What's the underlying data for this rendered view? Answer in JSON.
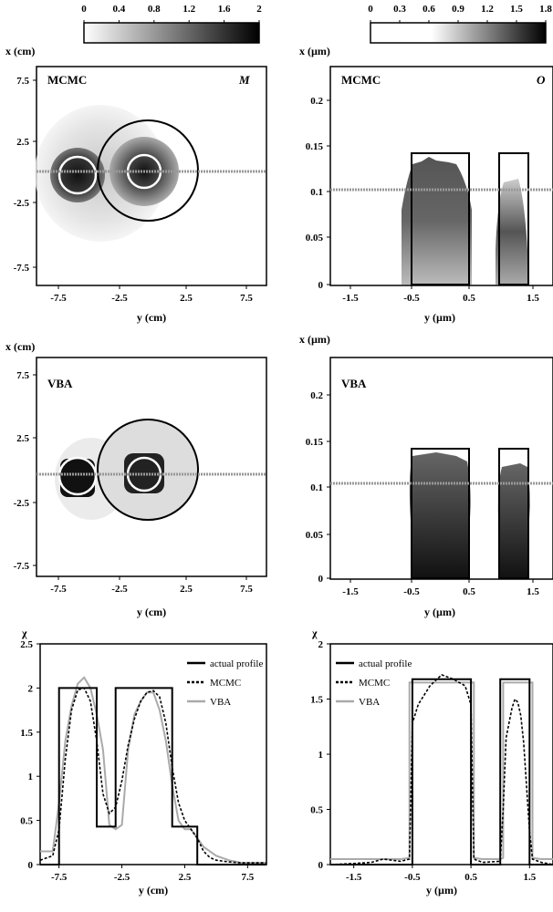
{
  "colorbars": [
    {
      "ticks": [
        "0",
        "0.4",
        "0.8",
        "1.2",
        "1.6",
        "2"
      ]
    },
    {
      "ticks": [
        "0",
        "0.3",
        "0.6",
        "0.9",
        "1.2",
        "1.5",
        "1.8"
      ]
    }
  ],
  "panels": [
    {
      "id": "mcmc-xy",
      "method": "MCMC",
      "corner": "M",
      "xlabel": "y (cm)",
      "ylabel": "x (cm)",
      "xticks": [
        "-7.5",
        "-2.5",
        "2.5",
        "7.5"
      ],
      "yticks": [
        "7.5",
        "2.5",
        "-2.5",
        "-7.5"
      ]
    },
    {
      "id": "mcmc-um",
      "method": "MCMC",
      "corner": "O",
      "xlabel": "y (µm)",
      "ylabel": "x (µm)",
      "xticks": [
        "-1.5",
        "-0.5",
        "0.5",
        "1.5"
      ],
      "yticks": [
        "0.2",
        "0.15",
        "0.1",
        "0.05",
        "0"
      ]
    },
    {
      "id": "vba-xy",
      "method": "VBA",
      "corner": "",
      "xlabel": "y (cm)",
      "ylabel": "x (cm)",
      "xticks": [
        "-7.5",
        "-2.5",
        "2.5",
        "7.5"
      ],
      "yticks": [
        "7.5",
        "2.5",
        "-2.5",
        "-7.5"
      ]
    },
    {
      "id": "vba-um",
      "method": "VBA",
      "corner": "",
      "xlabel": "y (µm)",
      "ylabel": "x (µm)",
      "xticks": [
        "-1.5",
        "-0.5",
        "0.5",
        "1.5"
      ],
      "yticks": [
        "0.2",
        "0.15",
        "0.1",
        "0.05",
        "0"
      ]
    }
  ],
  "chart_data": [
    {
      "type": "line",
      "ylabel": "χ",
      "xlabel": "y (cm)",
      "xlim": [
        -9,
        9
      ],
      "ylim": [
        0,
        2.5
      ],
      "xticks": [
        "-7.5",
        "-2.5",
        "2.5",
        "7.5"
      ],
      "yticks": [
        "0",
        "0.5",
        "1",
        "1.5",
        "2",
        "2.5"
      ],
      "legend_position": "top-right",
      "series": [
        {
          "name": "actual profile",
          "color": "#000000",
          "dash": "",
          "x": [
            -9,
            -7.5,
            -7.5,
            -4.5,
            -4.5,
            -3,
            -3,
            1.5,
            1.5,
            3.5,
            3.5,
            9
          ],
          "y": [
            0,
            0,
            2,
            2,
            0.43,
            0.43,
            2,
            2,
            0.43,
            0.43,
            0,
            0
          ]
        },
        {
          "name": "MCMC",
          "color": "#000000",
          "dash": "3,2",
          "x": [
            -9,
            -8,
            -7.5,
            -7,
            -6.5,
            -6,
            -5.5,
            -5,
            -4.5,
            -4,
            -3.5,
            -3,
            -2.5,
            -2,
            -1.5,
            -1,
            -0.5,
            0,
            0.5,
            1,
            1.5,
            2,
            2.5,
            3,
            3.5,
            4,
            4.5,
            5,
            6,
            7,
            8,
            9
          ],
          "y": [
            0.05,
            0.1,
            0.4,
            1.2,
            1.75,
            1.98,
            2.0,
            1.85,
            1.4,
            0.8,
            0.58,
            0.65,
            0.95,
            1.35,
            1.65,
            1.85,
            1.95,
            1.97,
            1.9,
            1.6,
            1.1,
            0.7,
            0.5,
            0.4,
            0.3,
            0.15,
            0.08,
            0.05,
            0.03,
            0.02,
            0.02,
            0.02
          ]
        },
        {
          "name": "VBA",
          "color": "#aaaaaa",
          "dash": "",
          "x": [
            -9,
            -8.5,
            -8,
            -7.5,
            -7,
            -6.5,
            -6,
            -5.5,
            -5,
            -4.5,
            -4,
            -3.5,
            -3,
            -2.5,
            -2,
            -1.5,
            -1,
            -0.5,
            0,
            0.5,
            1,
            1.5,
            2,
            2.5,
            3,
            3.5,
            4,
            5,
            6,
            7,
            8,
            9
          ],
          "y": [
            0.15,
            0.15,
            0.15,
            0.7,
            1.4,
            1.8,
            2.05,
            2.12,
            2.0,
            1.7,
            1.3,
            0.45,
            0.4,
            0.45,
            1.3,
            1.7,
            1.85,
            1.95,
            1.95,
            1.75,
            1.4,
            0.9,
            0.5,
            0.4,
            0.4,
            0.3,
            0.2,
            0.1,
            0.05,
            0.02,
            0.02,
            0.02
          ]
        }
      ]
    },
    {
      "type": "line",
      "ylabel": "χ",
      "xlabel": "y (µm)",
      "xlim": [
        -1.9,
        1.9
      ],
      "ylim": [
        0,
        2
      ],
      "xticks": [
        "-1.5",
        "-0.5",
        "0.5",
        "1.5"
      ],
      "yticks": [
        "0",
        "0.5",
        "1",
        "1.5",
        "2"
      ],
      "legend_position": "top-left",
      "series": [
        {
          "name": "actual profile",
          "color": "#000000",
          "dash": "",
          "x": [
            -1.9,
            -0.5,
            -0.5,
            0.5,
            0.5,
            1.0,
            1.0,
            1.5,
            1.5,
            1.9
          ],
          "y": [
            0,
            0,
            1.68,
            1.68,
            0,
            0,
            1.68,
            1.68,
            0,
            0
          ]
        },
        {
          "name": "MCMC",
          "color": "#000000",
          "dash": "3,2",
          "x": [
            -1.9,
            -1.5,
            -1.2,
            -1.0,
            -0.7,
            -0.55,
            -0.5,
            -0.4,
            -0.2,
            0,
            0.2,
            0.4,
            0.5,
            0.55,
            0.7,
            1.0,
            1.05,
            1.1,
            1.2,
            1.25,
            1.3,
            1.35,
            1.4,
            1.45,
            1.5,
            1.55,
            1.7,
            1.9
          ],
          "y": [
            0,
            0.01,
            0.02,
            0.05,
            0.03,
            0.05,
            1.28,
            1.45,
            1.62,
            1.72,
            1.68,
            1.62,
            1.45,
            0.05,
            0.02,
            0.03,
            0.5,
            1.15,
            1.42,
            1.5,
            1.47,
            1.35,
            1.1,
            0.7,
            0.3,
            0.05,
            0.02,
            0
          ]
        },
        {
          "name": "VBA",
          "color": "#aaaaaa",
          "dash": "",
          "x": [
            -1.9,
            -1.0,
            -0.7,
            -0.55,
            -0.55,
            0.55,
            0.55,
            0.7,
            1.0,
            1.05,
            1.05,
            1.55,
            1.55,
            1.7,
            1.9
          ],
          "y": [
            0.05,
            0.05,
            0.05,
            0.06,
            1.65,
            1.65,
            0.06,
            0.05,
            0.05,
            0.06,
            1.65,
            1.65,
            0.06,
            0.05,
            0.05
          ]
        }
      ]
    }
  ]
}
